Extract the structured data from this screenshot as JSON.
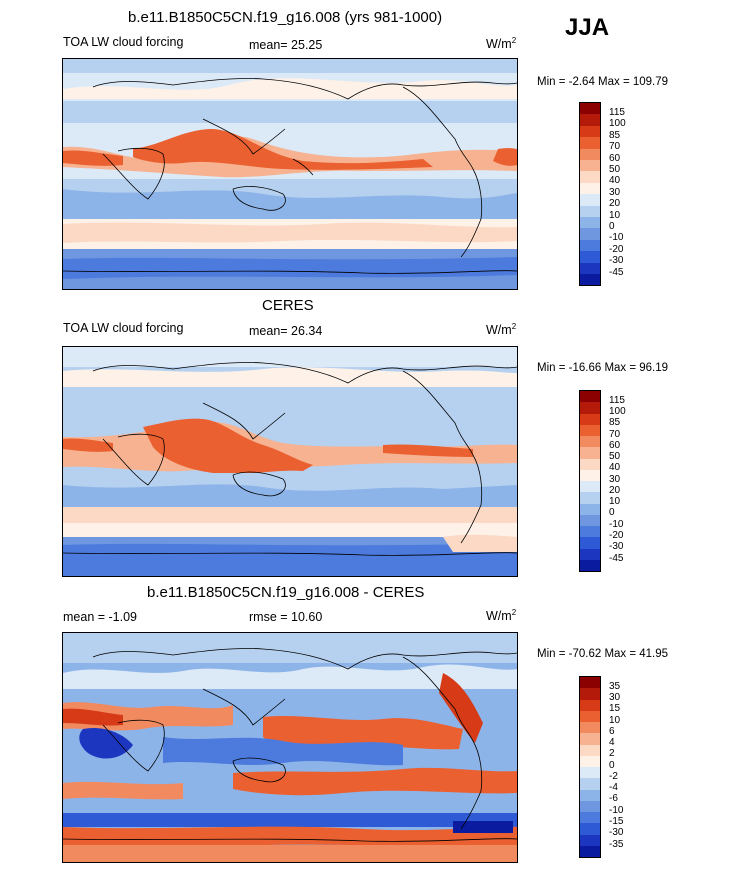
{
  "season": "JJA",
  "units_label": "W/m",
  "units_exp": "2",
  "panels": [
    {
      "title": "b.e11.B1850C5CN.f19_g16.008 (yrs 981-1000)",
      "left_label": "TOA LW cloud forcing",
      "center_label": "mean=  25.25",
      "minmax": "Min =  -2.64 Max = 109.79"
    },
    {
      "title": "CERES",
      "left_label": "TOA LW cloud forcing",
      "center_label": "mean=  26.34",
      "minmax": "Min = -16.66 Max =  96.19"
    },
    {
      "title": "b.e11.B1850C5CN.f19_g16.008 - CERES",
      "left_label": "mean =  -1.09",
      "center_label": "rmse =  10.60",
      "minmax": "Min = -70.62 Max = 41.95"
    }
  ],
  "colorbar_abs": {
    "labels": [
      "115",
      "100",
      "85",
      "70",
      "60",
      "50",
      "40",
      "30",
      "20",
      "10",
      "0",
      "-10",
      "-20",
      "-30",
      "-45"
    ],
    "colors": [
      "#8b0000",
      "#b41a0a",
      "#d63a16",
      "#ea6030",
      "#f28a60",
      "#f6b291",
      "#fbd9c4",
      "#fdf1e8",
      "#dce9f7",
      "#b6d1f0",
      "#8db4e8",
      "#6e97e0",
      "#4d7add",
      "#2e5ad6",
      "#1c36c0",
      "#0a1ba0"
    ]
  },
  "colorbar_diff": {
    "labels": [
      "35",
      "30",
      "15",
      "10",
      "6",
      "4",
      "2",
      "0",
      "-2",
      "-4",
      "-6",
      "-10",
      "-15",
      "-30",
      "-35"
    ],
    "colors": [
      "#8b0000",
      "#b41a0a",
      "#d63a16",
      "#ea6030",
      "#f28a60",
      "#f6b291",
      "#fbd9c4",
      "#fdf1e8",
      "#dce9f7",
      "#b6d1f0",
      "#8db4e8",
      "#6e97e0",
      "#4d7add",
      "#2e5ad6",
      "#1c36c0",
      "#0a1ba0"
    ]
  }
}
